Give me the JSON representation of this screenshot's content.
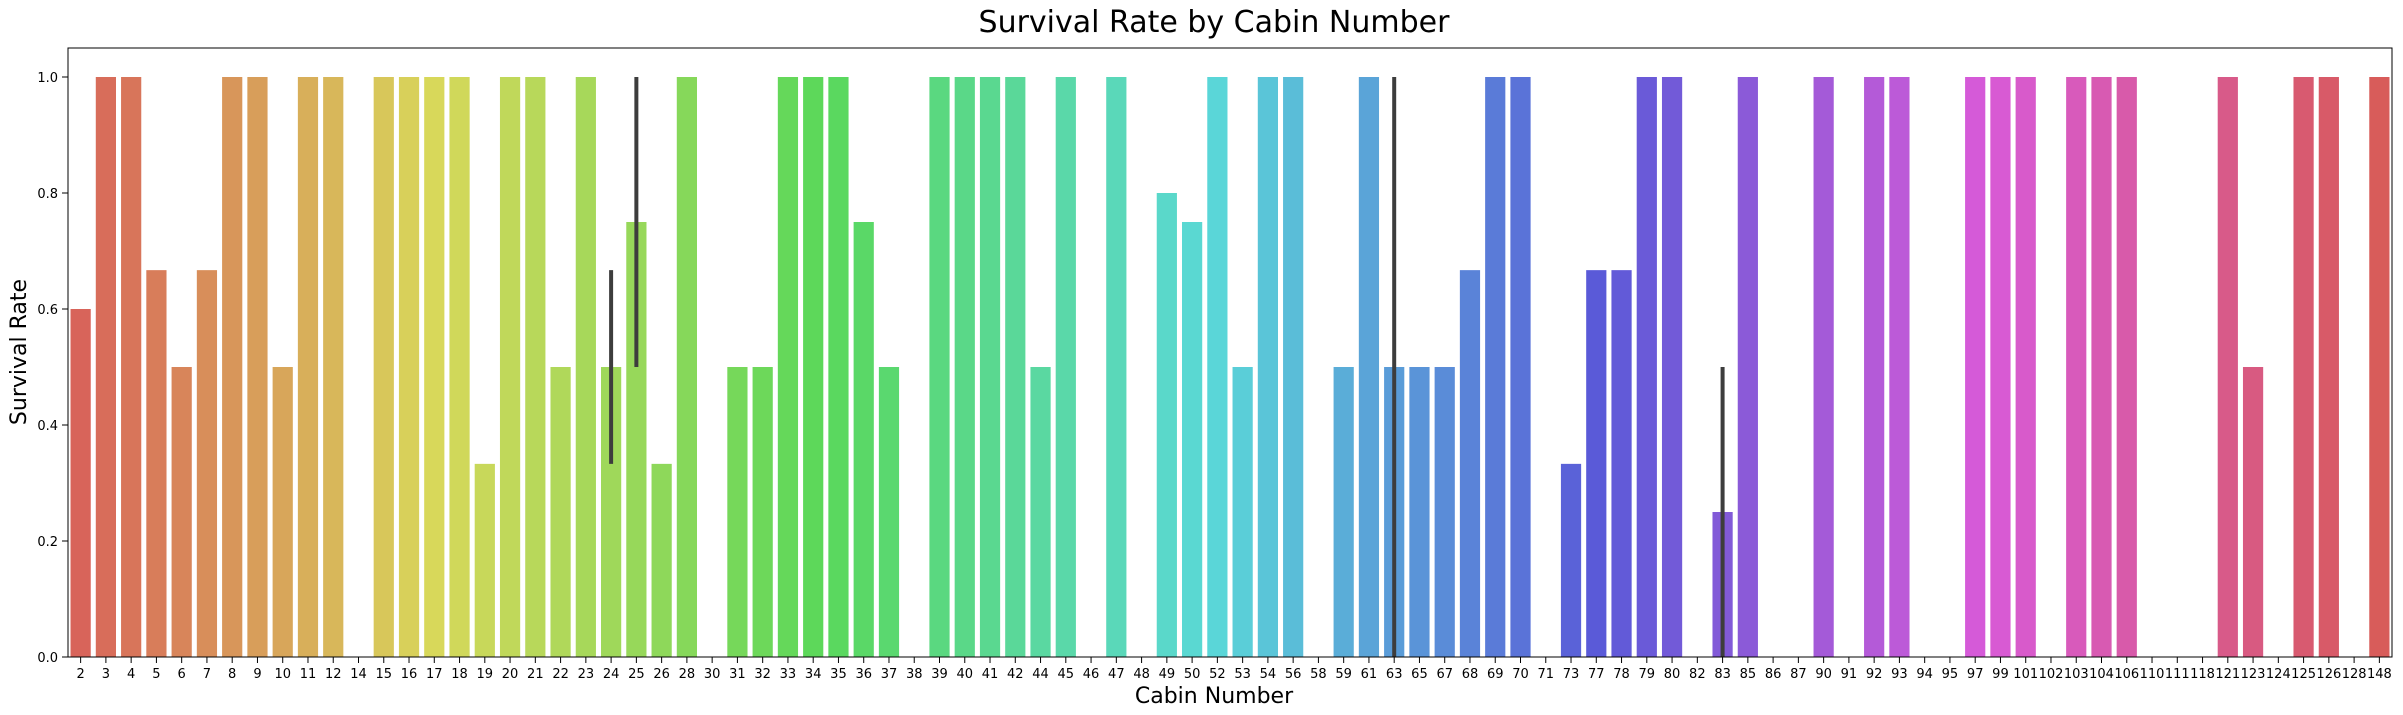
{
  "chart_data": {
    "type": "bar",
    "title": "Survival Rate by Cabin Number",
    "xlabel": "Cabin Number",
    "ylabel": "Survival Rate",
    "ylim": [
      0,
      1.05
    ],
    "yticks": [
      "0.0",
      "0.2",
      "0.4",
      "0.6",
      "0.8",
      "1.0"
    ],
    "categories": [
      "2",
      "3",
      "4",
      "5",
      "6",
      "7",
      "8",
      "9",
      "10",
      "11",
      "12",
      "14",
      "15",
      "16",
      "17",
      "18",
      "19",
      "20",
      "21",
      "22",
      "23",
      "24",
      "25",
      "26",
      "28",
      "30",
      "31",
      "32",
      "33",
      "34",
      "35",
      "36",
      "37",
      "38",
      "39",
      "40",
      "41",
      "42",
      "44",
      "45",
      "46",
      "47",
      "48",
      "49",
      "50",
      "52",
      "53",
      "54",
      "56",
      "58",
      "59",
      "61",
      "63",
      "65",
      "67",
      "68",
      "69",
      "70",
      "71",
      "73",
      "77",
      "78",
      "79",
      "80",
      "82",
      "83",
      "85",
      "86",
      "87",
      "90",
      "91",
      "92",
      "93",
      "94",
      "95",
      "97",
      "99",
      "101",
      "102",
      "103",
      "104",
      "106",
      "110",
      "111",
      "118",
      "121",
      "123",
      "124",
      "125",
      "126",
      "128",
      "148"
    ],
    "values": [
      0.6,
      1,
      1,
      0.667,
      0.5,
      0.667,
      1,
      1,
      0.5,
      1,
      1,
      0,
      1,
      1,
      1,
      1,
      0.333,
      1,
      1,
      0.5,
      1,
      0.5,
      0.75,
      0.333,
      1,
      0,
      0.5,
      0.5,
      1,
      1,
      1,
      0.75,
      0.5,
      0,
      1,
      1,
      1,
      1,
      0.5,
      1,
      0,
      1,
      0,
      0.8,
      0.75,
      1,
      0.5,
      1,
      1,
      0,
      0.5,
      1,
      0.5,
      0.5,
      0.5,
      0.667,
      1,
      1,
      0,
      0.333,
      0.667,
      0.667,
      1,
      1,
      0,
      0.25,
      1,
      0,
      0,
      1,
      0,
      1,
      1,
      0,
      0,
      1,
      1,
      1,
      0,
      1,
      1,
      1,
      0,
      0,
      0,
      1,
      0.5,
      0,
      1,
      1,
      0,
      1
    ],
    "error_bars": [
      {
        "category": "24",
        "low": 0.333,
        "high": 0.667
      },
      {
        "category": "25",
        "low": 0.5,
        "high": 1.0
      },
      {
        "category": "63",
        "low": 0.0,
        "high": 1.0
      },
      {
        "category": "83",
        "low": 0.0,
        "high": 0.5
      }
    ],
    "grid": false,
    "palette": "husl"
  }
}
